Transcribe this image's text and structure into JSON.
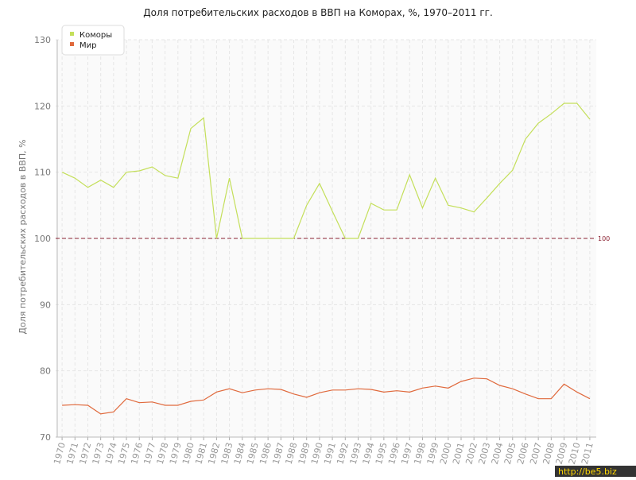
{
  "chart_data": {
    "type": "line",
    "title": "Доля потребительских расходов в ВВП на Коморах, %, 1970–2011 гг.",
    "y_label": "Доля потребительских расходов в ВВП, %",
    "categories": [
      "1970",
      "1971",
      "1972",
      "1973",
      "1974",
      "1975",
      "1976",
      "1977",
      "1978",
      "1979",
      "1980",
      "1981",
      "1982",
      "1983",
      "1984",
      "1985",
      "1986",
      "1987",
      "1988",
      "1989",
      "1990",
      "1991",
      "1992",
      "1993",
      "1994",
      "1995",
      "1996",
      "1997",
      "1998",
      "1999",
      "2000",
      "2001",
      "2002",
      "2003",
      "2004",
      "2005",
      "2006",
      "2007",
      "2008",
      "2009",
      "2010",
      "2011"
    ],
    "series": [
      {
        "name": "Коморы",
        "color": "#c4df5a",
        "values": [
          110,
          109.1,
          107.7,
          108.8,
          107.7,
          110,
          110.2,
          110.8,
          109.5,
          109.1,
          116.6,
          118.2,
          100,
          109.1,
          100,
          100,
          100,
          100,
          100,
          105,
          108.3,
          104.1,
          100,
          100,
          105.3,
          104.3,
          104.3,
          109.6,
          104.6,
          109.1,
          105,
          104.6,
          104,
          106.1,
          108.3,
          110.3,
          115,
          117.4,
          118.8,
          120.4,
          120.4,
          118
        ]
      },
      {
        "name": "Мир",
        "color": "#e0693c",
        "values": [
          74.8,
          74.9,
          74.8,
          73.5,
          73.8,
          75.8,
          75.2,
          75.3,
          74.8,
          74.8,
          75.4,
          75.6,
          76.8,
          77.3,
          76.7,
          77.1,
          77.3,
          77.2,
          76.5,
          76,
          76.7,
          77.1,
          77.1,
          77.3,
          77.2,
          76.8,
          77,
          76.8,
          77.4,
          77.7,
          77.4,
          78.4,
          78.9,
          78.8,
          77.8,
          77.3,
          76.5,
          75.8,
          75.8,
          78,
          76.8,
          75.8
        ]
      }
    ],
    "ylim": [
      70,
      130
    ],
    "yticks": [
      70,
      80,
      90,
      100,
      110,
      120,
      130
    ],
    "grid": true,
    "legend": "top-left",
    "reference_line": 100,
    "reference_color": "#8b2232",
    "watermark": "http://be5.biz"
  }
}
